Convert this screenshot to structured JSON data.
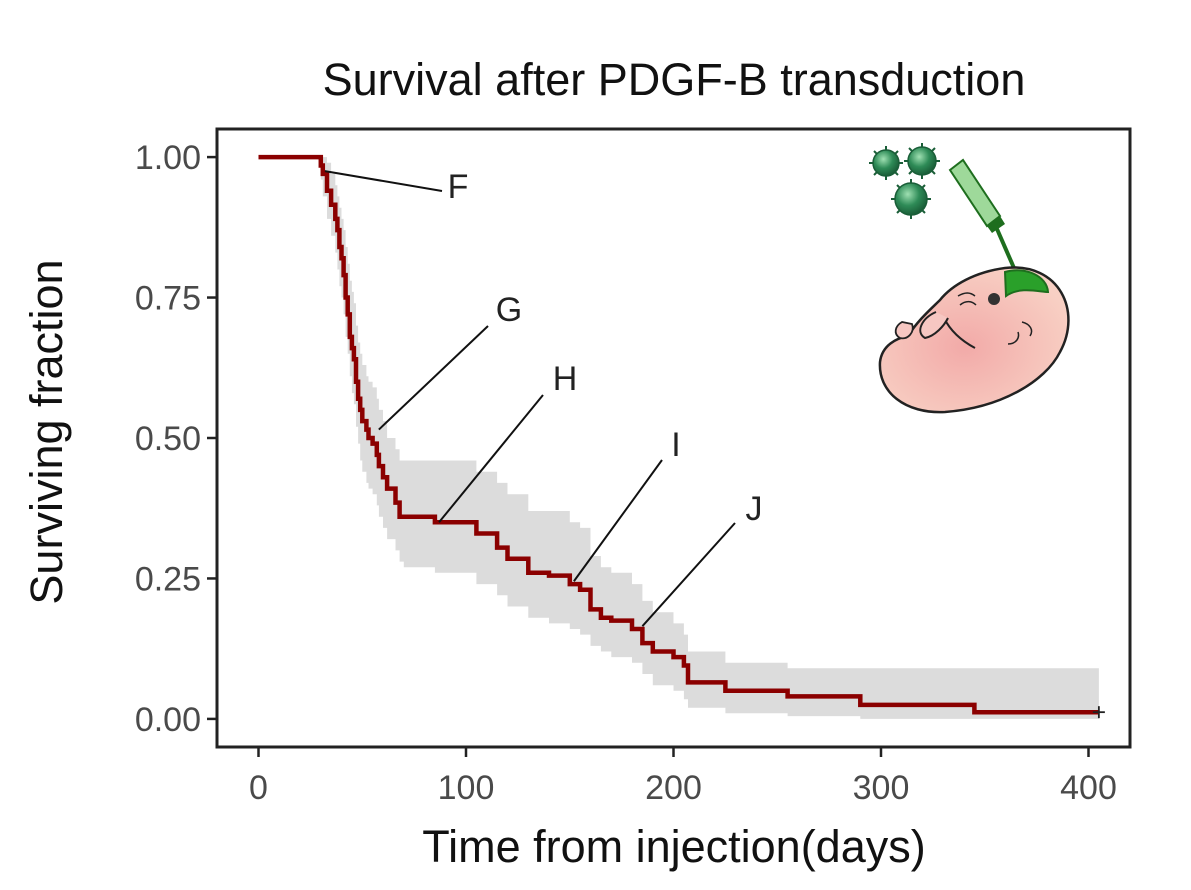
{
  "chart_data": {
    "type": "line",
    "subtype": "kaplan-meier step",
    "title": "Survival after PDGF-B transduction",
    "xlabel": "Time from injection(days)",
    "ylabel": "Surviving fraction",
    "xlim": [
      -20,
      420
    ],
    "ylim": [
      -0.05,
      1.05
    ],
    "xticks": [
      0,
      100,
      200,
      300,
      400
    ],
    "xtick_labels": [
      "0",
      "100",
      "200",
      "300",
      "400"
    ],
    "yticks": [
      0.0,
      0.25,
      0.5,
      0.75,
      1.0
    ],
    "ytick_labels": [
      "0.00",
      "0.25",
      "0.50",
      "0.75",
      "1.00"
    ],
    "grid": false,
    "series": [
      {
        "name": "Survival",
        "color": "#8b0000",
        "band_color": "#dcdcdc",
        "x": [
          0,
          30,
          31,
          33,
          35,
          37,
          38,
          39,
          40,
          41,
          42,
          43,
          44,
          45,
          46,
          47,
          48,
          49,
          50,
          52,
          53,
          55,
          57,
          58,
          60,
          62,
          64,
          66,
          68,
          70,
          85,
          100,
          105,
          115,
          120,
          130,
          140,
          145,
          150,
          155,
          160,
          165,
          170,
          180,
          185,
          190,
          200,
          205,
          207,
          225,
          255,
          290,
          345,
          405
        ],
        "y": [
          1.0,
          0.985,
          0.97,
          0.94,
          0.915,
          0.89,
          0.87,
          0.84,
          0.82,
          0.79,
          0.75,
          0.72,
          0.68,
          0.66,
          0.64,
          0.6,
          0.57,
          0.55,
          0.53,
          0.515,
          0.5,
          0.49,
          0.47,
          0.45,
          0.43,
          0.41,
          0.41,
          0.385,
          0.36,
          0.36,
          0.35,
          0.35,
          0.33,
          0.305,
          0.285,
          0.26,
          0.255,
          0.255,
          0.24,
          0.23,
          0.195,
          0.18,
          0.175,
          0.16,
          0.135,
          0.12,
          0.11,
          0.095,
          0.065,
          0.05,
          0.04,
          0.025,
          0.012,
          0.012
        ],
        "lower": [
          1.0,
          0.96,
          0.93,
          0.89,
          0.86,
          0.83,
          0.8,
          0.77,
          0.75,
          0.72,
          0.68,
          0.65,
          0.61,
          0.58,
          0.56,
          0.52,
          0.49,
          0.46,
          0.44,
          0.42,
          0.41,
          0.4,
          0.38,
          0.36,
          0.34,
          0.32,
          0.32,
          0.3,
          0.28,
          0.27,
          0.26,
          0.26,
          0.24,
          0.22,
          0.2,
          0.18,
          0.17,
          0.17,
          0.16,
          0.15,
          0.13,
          0.12,
          0.11,
          0.1,
          0.08,
          0.06,
          0.05,
          0.035,
          0.02,
          0.01,
          0.005,
          0.0,
          0.0,
          0.0
        ],
        "upper": [
          1.0,
          1.0,
          1.0,
          0.99,
          0.97,
          0.95,
          0.93,
          0.91,
          0.89,
          0.87,
          0.84,
          0.81,
          0.78,
          0.76,
          0.74,
          0.7,
          0.67,
          0.65,
          0.63,
          0.61,
          0.6,
          0.59,
          0.57,
          0.55,
          0.53,
          0.5,
          0.5,
          0.48,
          0.46,
          0.46,
          0.46,
          0.46,
          0.44,
          0.42,
          0.4,
          0.37,
          0.37,
          0.37,
          0.35,
          0.34,
          0.29,
          0.27,
          0.26,
          0.24,
          0.21,
          0.19,
          0.17,
          0.15,
          0.12,
          0.1,
          0.09,
          0.09,
          0.09,
          0.09
        ]
      }
    ],
    "censor_marks": [
      {
        "x": 405,
        "y": 0.012
      }
    ],
    "annotations": [
      {
        "label": "F",
        "target_x": 32,
        "target_y": 0.975
      },
      {
        "label": "G",
        "target_x": 58,
        "target_y": 0.515
      },
      {
        "label": "H",
        "target_x": 87,
        "target_y": 0.35
      },
      {
        "label": "I",
        "target_x": 152,
        "target_y": 0.245
      },
      {
        "label": "J",
        "target_x": 185,
        "target_y": 0.165
      }
    ]
  },
  "illustration": {
    "description_icon": "embryo-injection-illustration",
    "virus_color": "#2e8b57",
    "syringe_color": "#2aa02a",
    "embryo_color": "#f6c7c2"
  }
}
